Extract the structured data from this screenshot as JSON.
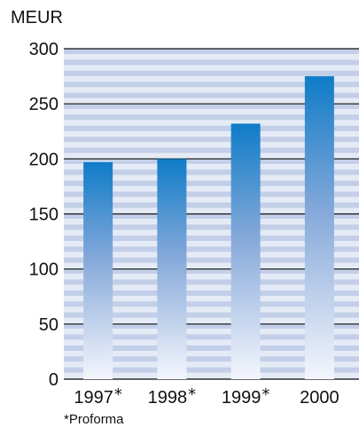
{
  "chart_data": {
    "type": "bar",
    "ylabel": "MEUR",
    "categories": [
      "1997",
      "1998",
      "1999",
      "2000"
    ],
    "category_markers": [
      "*",
      "*",
      "*",
      ""
    ],
    "values": [
      197,
      200,
      232,
      275
    ],
    "ylim": [
      0,
      300
    ],
    "yticks": [
      0,
      50,
      100,
      150,
      200,
      250,
      300
    ],
    "grid": true,
    "footnote": "*Proforma",
    "colors": {
      "bar_top": "#0f7cc7",
      "bar_bottom": "#f4f6fc",
      "band_dark": "#c3cfe8",
      "band_light": "#e5ebf6",
      "gridline": "#111111"
    }
  }
}
